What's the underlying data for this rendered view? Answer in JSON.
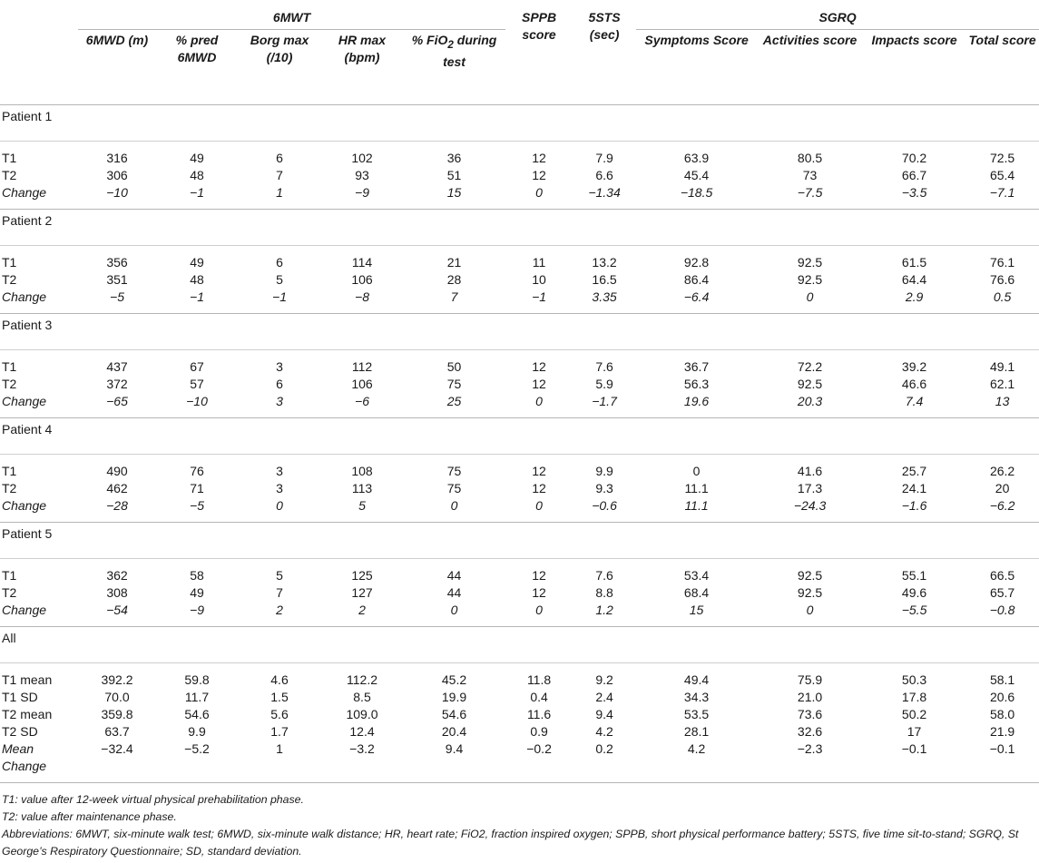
{
  "headers": {
    "group_6mwt": "6MWT",
    "group_sgrq": "SGRQ",
    "cols": [
      {
        "key": "6mwd",
        "label": "6MWD (m)"
      },
      {
        "key": "pred",
        "label": "% pred 6MWD"
      },
      {
        "key": "borg",
        "label": "Borg max (/10)"
      },
      {
        "key": "hr",
        "label": "HR max (bpm)"
      },
      {
        "key": "fio2",
        "label": "% FiO",
        "sub": "2",
        "label_after": " during test"
      },
      {
        "key": "sppb",
        "label": "SPPB score"
      },
      {
        "key": "5sts",
        "label": "5STS (sec)"
      },
      {
        "key": "symptoms",
        "label": "Symptoms Score"
      },
      {
        "key": "activities",
        "label": "Activities score"
      },
      {
        "key": "impacts",
        "label": "Impacts score"
      },
      {
        "key": "total",
        "label": "Total score"
      }
    ]
  },
  "sections": [
    {
      "title": "Patient 1",
      "rows": [
        {
          "label": "T1",
          "italic": false,
          "values": [
            "316",
            "49",
            "6",
            "102",
            "36",
            "12",
            "7.9",
            "63.9",
            "80.5",
            "70.2",
            "72.5"
          ]
        },
        {
          "label": "T2",
          "italic": false,
          "values": [
            "306",
            "48",
            "7",
            "93",
            "51",
            "12",
            "6.6",
            "45.4",
            "73",
            "66.7",
            "65.4"
          ]
        },
        {
          "label": "Change",
          "italic": true,
          "values": [
            "−10",
            "−1",
            "1",
            "−9",
            "15",
            "0",
            "−1.34",
            "−18.5",
            "−7.5",
            "−3.5",
            "−7.1"
          ]
        }
      ]
    },
    {
      "title": "Patient 2",
      "rows": [
        {
          "label": "T1",
          "italic": false,
          "values": [
            "356",
            "49",
            "6",
            "114",
            "21",
            "11",
            "13.2",
            "92.8",
            "92.5",
            "61.5",
            "76.1"
          ]
        },
        {
          "label": "T2",
          "italic": false,
          "values": [
            "351",
            "48",
            "5",
            "106",
            "28",
            "10",
            "16.5",
            "86.4",
            "92.5",
            "64.4",
            "76.6"
          ]
        },
        {
          "label": "Change",
          "italic": true,
          "values": [
            "−5",
            "−1",
            "−1",
            "−8",
            "7",
            "−1",
            "3.35",
            "−6.4",
            "0",
            "2.9",
            "0.5"
          ]
        }
      ]
    },
    {
      "title": "Patient 3",
      "rows": [
        {
          "label": "T1",
          "italic": false,
          "values": [
            "437",
            "67",
            "3",
            "112",
            "50",
            "12",
            "7.6",
            "36.7",
            "72.2",
            "39.2",
            "49.1"
          ]
        },
        {
          "label": "T2",
          "italic": false,
          "values": [
            "372",
            "57",
            "6",
            "106",
            "75",
            "12",
            "5.9",
            "56.3",
            "92.5",
            "46.6",
            "62.1"
          ]
        },
        {
          "label": "Change",
          "italic": true,
          "values": [
            "−65",
            "−10",
            "3",
            "−6",
            "25",
            "0",
            "−1.7",
            "19.6",
            "20.3",
            "7.4",
            "13"
          ]
        }
      ]
    },
    {
      "title": "Patient 4",
      "rows": [
        {
          "label": "T1",
          "italic": false,
          "values": [
            "490",
            "76",
            "3",
            "108",
            "75",
            "12",
            "9.9",
            "0",
            "41.6",
            "25.7",
            "26.2"
          ]
        },
        {
          "label": "T2",
          "italic": false,
          "values": [
            "462",
            "71",
            "3",
            "113",
            "75",
            "12",
            "9.3",
            "11.1",
            "17.3",
            "24.1",
            "20"
          ]
        },
        {
          "label": "Change",
          "italic": true,
          "values": [
            "−28",
            "−5",
            "0",
            "5",
            "0",
            "0",
            "−0.6",
            "11.1",
            "−24.3",
            "−1.6",
            "−6.2"
          ]
        }
      ]
    },
    {
      "title": "Patient 5",
      "rows": [
        {
          "label": "T1",
          "italic": false,
          "values": [
            "362",
            "58",
            "5",
            "125",
            "44",
            "12",
            "7.6",
            "53.4",
            "92.5",
            "55.1",
            "66.5"
          ]
        },
        {
          "label": "T2",
          "italic": false,
          "values": [
            "308",
            "49",
            "7",
            "127",
            "44",
            "12",
            "8.8",
            "68.4",
            "92.5",
            "49.6",
            "65.7"
          ]
        },
        {
          "label": "Change",
          "italic": true,
          "values": [
            "−54",
            "−9",
            "2",
            "2",
            "0",
            "0",
            "1.2",
            "15",
            "0",
            "−5.5",
            "−0.8"
          ]
        }
      ]
    },
    {
      "title": "All",
      "rows": [
        {
          "label": "T1 mean",
          "italic": false,
          "values": [
            "392.2",
            "59.8",
            "4.6",
            "112.2",
            "45.2",
            "11.8",
            "9.2",
            "49.4",
            "75.9",
            "50.3",
            "58.1"
          ]
        },
        {
          "label": "T1 SD",
          "italic": false,
          "values": [
            "70.0",
            "11.7",
            "1.5",
            "8.5",
            "19.9",
            "0.4",
            "2.4",
            "34.3",
            "21.0",
            "17.8",
            "20.6"
          ]
        },
        {
          "label": "T2 mean",
          "italic": false,
          "values": [
            "359.8",
            "54.6",
            "5.6",
            "109.0",
            "54.6",
            "11.6",
            "9.4",
            "53.5",
            "73.6",
            "50.2",
            "58.0"
          ]
        },
        {
          "label": "T2 SD",
          "italic": false,
          "values": [
            "63.7",
            "9.9",
            "1.7",
            "12.4",
            "20.4",
            "0.9",
            "4.2",
            "28.1",
            "32.6",
            "17",
            "21.9"
          ]
        },
        {
          "label": "Mean Change",
          "italic": true,
          "plain_values": true,
          "values": [
            "−32.4",
            "−5.2",
            "1",
            "−3.2",
            "9.4",
            "−0.2",
            "0.2",
            "4.2",
            "−2.3",
            "−0.1",
            "−0.1"
          ]
        }
      ]
    }
  ],
  "footnotes": {
    "t1": "T1: value after 12-week virtual physical prehabilitation phase.",
    "t2": "T2: value after maintenance phase.",
    "abbrev": "Abbreviations: 6MWT, six-minute walk test; 6MWD, six-minute walk distance; HR, heart rate; FiO2, fraction inspired oxygen; SPPB, short physical performance battery; 5STS, five time sit-to-stand; SGRQ, St George’s Respiratory Questionnaire; SD, standard deviation."
  }
}
